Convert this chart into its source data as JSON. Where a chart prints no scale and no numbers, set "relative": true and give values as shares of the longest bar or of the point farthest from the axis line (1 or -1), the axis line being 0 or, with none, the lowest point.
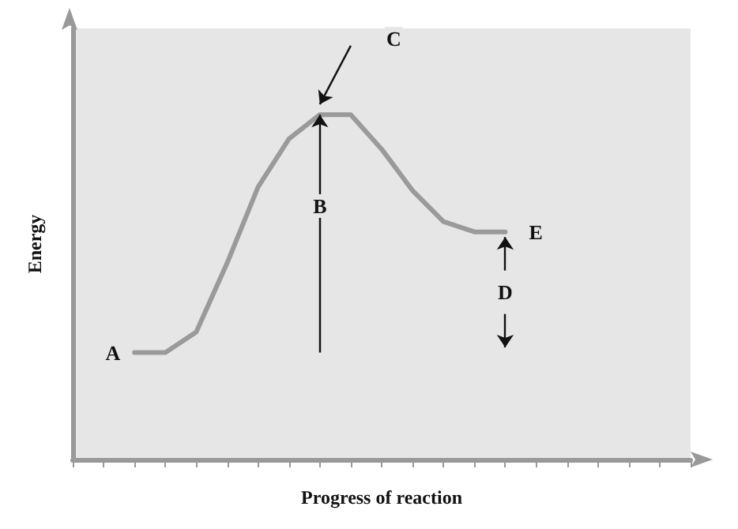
{
  "chart_data": {
    "type": "line",
    "relative": true,
    "xlabel": "Progress of reaction",
    "ylabel": "Energy",
    "grid": false,
    "marker": "none",
    "line_style": "solid",
    "categories": [
      null,
      null,
      null,
      null,
      null,
      null,
      null,
      null,
      null,
      null,
      null,
      null,
      null,
      null,
      null,
      null,
      null,
      null,
      null,
      null,
      null
    ],
    "series": [
      {
        "color": "#9a9a9a",
        "values": [
          null,
          null,
          0.31,
          0.31,
          0.37,
          0.57,
          0.79,
          0.93,
          1,
          1,
          0.9,
          0.78,
          0.69,
          0.66,
          0.66,
          null,
          null,
          null,
          null,
          null,
          null
        ]
      }
    ],
    "annotations": [
      "A",
      "B",
      "C",
      "D",
      "E"
    ]
  }
}
